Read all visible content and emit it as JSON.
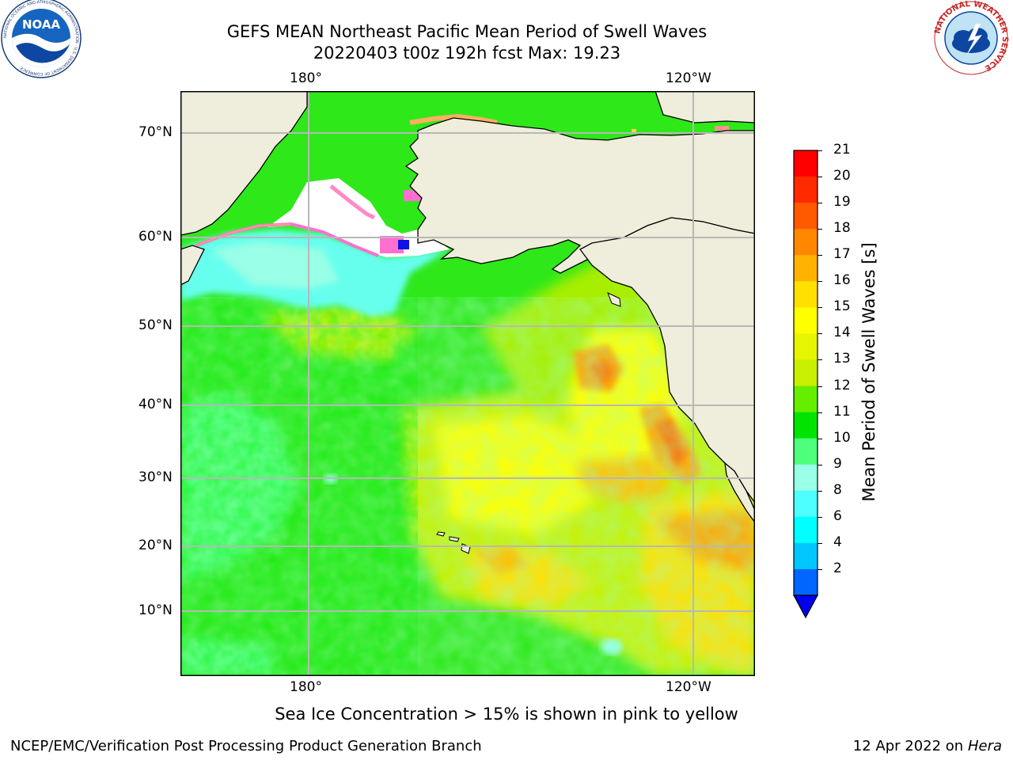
{
  "header": {
    "title_line1": "GEFS MEAN Northeast Pacific Mean Period of Swell Waves",
    "title_line2": "20220403 t00z 192h fcst   Max: 19.23"
  },
  "logos": {
    "left": "NOAA",
    "left_ring": "NATIONAL OCEANIC AND ATMOSPHERIC ADMINISTRATION · U.S. DEPARTMENT OF COMMERCE",
    "right_ring": "NATIONAL WEATHER SERVICE"
  },
  "map": {
    "lon_labels": [
      "180°",
      "120°W"
    ],
    "lat_labels": [
      "70°N",
      "60°N",
      "50°N",
      "40°N",
      "30°N",
      "20°N",
      "10°N"
    ],
    "land_color": "#efeddb",
    "ice_color": "#ffffff"
  },
  "colorbar": {
    "label": "Mean Period of Swell Waves [s]",
    "ticks": [
      "21",
      "20",
      "19",
      "18",
      "17",
      "16",
      "15",
      "14",
      "13",
      "12",
      "11",
      "10",
      "9",
      "8",
      "6",
      "4",
      "2"
    ],
    "colors": [
      "#ff0000",
      "#ff2a00",
      "#ff5a00",
      "#ff8800",
      "#ffb300",
      "#ffe000",
      "#ffff00",
      "#e6f500",
      "#c8f000",
      "#66ee00",
      "#00e400",
      "#4dff7a",
      "#99ffe6",
      "#4dffff",
      "#00ffff",
      "#00c8ff",
      "#0066ff"
    ],
    "extend_color": "#0000ee"
  },
  "notes": {
    "ice_note": "Sea Ice Concentration > 15% is shown in pink to yellow"
  },
  "footer": {
    "left": "NCEP/EMC/Verification Post Processing Product Generation Branch",
    "right_date": "12 Apr 2022 on",
    "right_host": "Hera"
  }
}
